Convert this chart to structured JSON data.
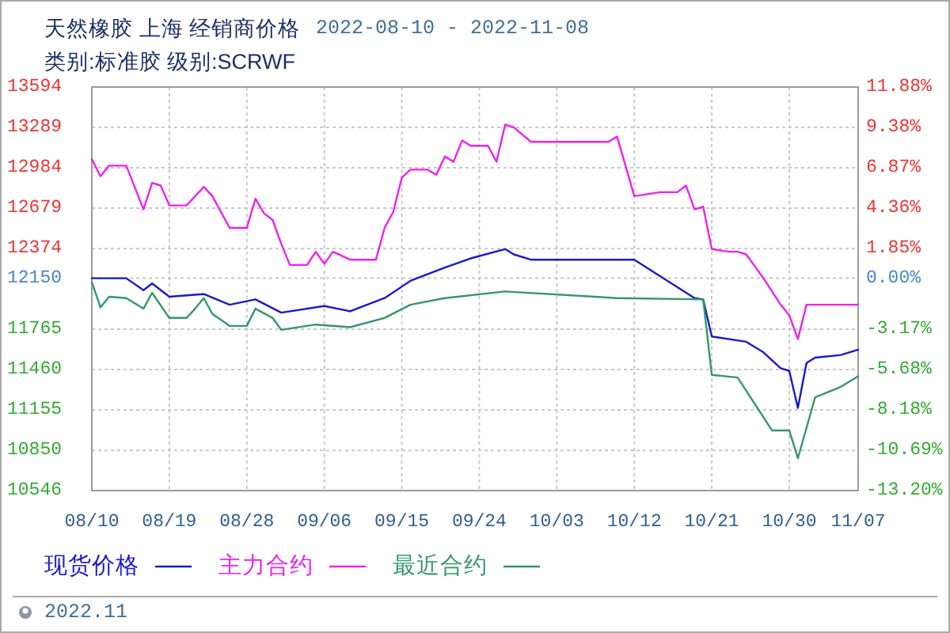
{
  "chart_data": {
    "type": "line",
    "title": "天然橡胶 上海 经销商价格",
    "subtitle": "类别:标准胶 级别:SCRWF",
    "annotations": [
      "2022-08-10 - 2022-11-08",
      "2022.11"
    ],
    "xlim": [
      "2022-08-10",
      "2022-11-07"
    ],
    "xticks": [
      {
        "value": "2022-08-10",
        "label": "08/10"
      },
      {
        "value": "2022-08-19",
        "label": "08/19"
      },
      {
        "value": "2022-08-28",
        "label": "08/28"
      },
      {
        "value": "2022-09-06",
        "label": "09/06"
      },
      {
        "value": "2022-09-15",
        "label": "09/15"
      },
      {
        "value": "2022-09-24",
        "label": "09/24"
      },
      {
        "value": "2022-10-03",
        "label": "10/03"
      },
      {
        "value": "2022-10-12",
        "label": "10/12"
      },
      {
        "value": "2022-10-21",
        "label": "10/21"
      },
      {
        "value": "2022-10-30",
        "label": "10/30"
      },
      {
        "value": "2022-11-07",
        "label": "11/07"
      }
    ],
    "ylim": [
      10546,
      13594
    ],
    "yticks": [
      13594,
      13289,
      12984,
      12679,
      12374,
      12150,
      11765,
      11460,
      11155,
      10850,
      10546
    ],
    "y2lim": [
      -13.2,
      11.88
    ],
    "y2ticks": [
      {
        "value": 11.88,
        "label": "11.88%"
      },
      {
        "value": 9.38,
        "label": "9.38%"
      },
      {
        "value": 6.87,
        "label": "6.87%"
      },
      {
        "value": 4.36,
        "label": "4.36%"
      },
      {
        "value": 1.85,
        "label": "1.85%"
      },
      {
        "value": 0,
        "label": "0.00%"
      },
      {
        "value": -3.17,
        "label": "-3.17%"
      },
      {
        "value": -5.68,
        "label": "-5.68%"
      },
      {
        "value": -8.18,
        "label": "-8.18%"
      },
      {
        "value": -10.69,
        "label": "-10.69%"
      },
      {
        "value": -13.2,
        "label": "-13.20%"
      }
    ],
    "grid": true,
    "legend": "bottom",
    "series": [
      {
        "name": "现货价格",
        "color": "#1a1acc",
        "x": [
          "2022-08-10",
          "2022-08-12",
          "2022-08-14",
          "2022-08-16",
          "2022-08-17",
          "2022-08-19",
          "2022-08-23",
          "2022-08-26",
          "2022-08-29",
          "2022-09-01",
          "2022-09-06",
          "2022-09-09",
          "2022-09-13",
          "2022-09-16",
          "2022-09-20",
          "2022-09-23",
          "2022-09-27",
          "2022-09-28",
          "2022-09-30",
          "2022-10-10",
          "2022-10-12",
          "2022-10-19",
          "2022-10-20",
          "2022-10-21",
          "2022-10-25",
          "2022-10-27",
          "2022-10-29",
          "2022-10-30",
          "2022-10-31",
          "2022-11-01",
          "2022-11-02",
          "2022-11-05",
          "2022-11-07"
        ],
        "values": [
          12150,
          12150,
          12150,
          12060,
          12110,
          12010,
          12030,
          11950,
          11990,
          11890,
          11940,
          11900,
          12000,
          12130,
          12230,
          12300,
          12370,
          12330,
          12290,
          12290,
          12290,
          12000,
          11990,
          11710,
          11670,
          11590,
          11470,
          11450,
          11170,
          11510,
          11550,
          11570,
          11610
        ]
      },
      {
        "name": "主力合约",
        "color": "#ee22ee",
        "x": [
          "2022-08-10",
          "2022-08-11",
          "2022-08-12",
          "2022-08-14",
          "2022-08-16",
          "2022-08-17",
          "2022-08-18",
          "2022-08-19",
          "2022-08-21",
          "2022-08-23",
          "2022-08-24",
          "2022-08-26",
          "2022-08-28",
          "2022-08-29",
          "2022-08-30",
          "2022-08-31",
          "2022-09-01",
          "2022-09-02",
          "2022-09-04",
          "2022-09-05",
          "2022-09-06",
          "2022-09-07",
          "2022-09-09",
          "2022-09-12",
          "2022-09-13",
          "2022-09-14",
          "2022-09-15",
          "2022-09-16",
          "2022-09-18",
          "2022-09-19",
          "2022-09-20",
          "2022-09-21",
          "2022-09-22",
          "2022-09-23",
          "2022-09-25",
          "2022-09-26",
          "2022-09-27",
          "2022-09-28",
          "2022-09-30",
          "2022-10-09",
          "2022-10-10",
          "2022-10-12",
          "2022-10-15",
          "2022-10-17",
          "2022-10-18",
          "2022-10-19",
          "2022-10-20",
          "2022-10-21",
          "2022-10-23",
          "2022-10-24",
          "2022-10-25",
          "2022-10-27",
          "2022-10-29",
          "2022-10-30",
          "2022-10-31",
          "2022-11-01",
          "2022-11-07"
        ],
        "values": [
          13050,
          12920,
          13000,
          13000,
          12670,
          12870,
          12850,
          12700,
          12700,
          12840,
          12770,
          12530,
          12530,
          12750,
          12640,
          12590,
          12410,
          12250,
          12250,
          12350,
          12260,
          12350,
          12290,
          12290,
          12530,
          12650,
          12910,
          12970,
          12970,
          12930,
          13070,
          13030,
          13190,
          13150,
          13150,
          13030,
          13310,
          13290,
          13180,
          13180,
          13220,
          12770,
          12800,
          12800,
          12850,
          12670,
          12690,
          12370,
          12350,
          12350,
          12330,
          12150,
          11950,
          11870,
          11690,
          11950,
          11950
        ]
      },
      {
        "name": "最近合约",
        "color": "#339966",
        "x": [
          "2022-08-10",
          "2022-08-11",
          "2022-08-12",
          "2022-08-14",
          "2022-08-16",
          "2022-08-17",
          "2022-08-19",
          "2022-08-21",
          "2022-08-22",
          "2022-08-23",
          "2022-08-24",
          "2022-08-26",
          "2022-08-28",
          "2022-08-29",
          "2022-08-31",
          "2022-09-01",
          "2022-09-05",
          "2022-09-09",
          "2022-09-13",
          "2022-09-16",
          "2022-09-20",
          "2022-09-27",
          "2022-10-10",
          "2022-10-20",
          "2022-10-21",
          "2022-10-24",
          "2022-10-28",
          "2022-10-30",
          "2022-10-31",
          "2022-11-02",
          "2022-11-05",
          "2022-11-07"
        ],
        "values": [
          12120,
          11930,
          12010,
          12000,
          11920,
          12040,
          11850,
          11850,
          11920,
          12000,
          11880,
          11790,
          11790,
          11920,
          11850,
          11760,
          11800,
          11780,
          11850,
          11950,
          12000,
          12050,
          12000,
          11990,
          11420,
          11400,
          11000,
          11000,
          10790,
          11250,
          11330,
          11410
        ]
      }
    ]
  }
}
